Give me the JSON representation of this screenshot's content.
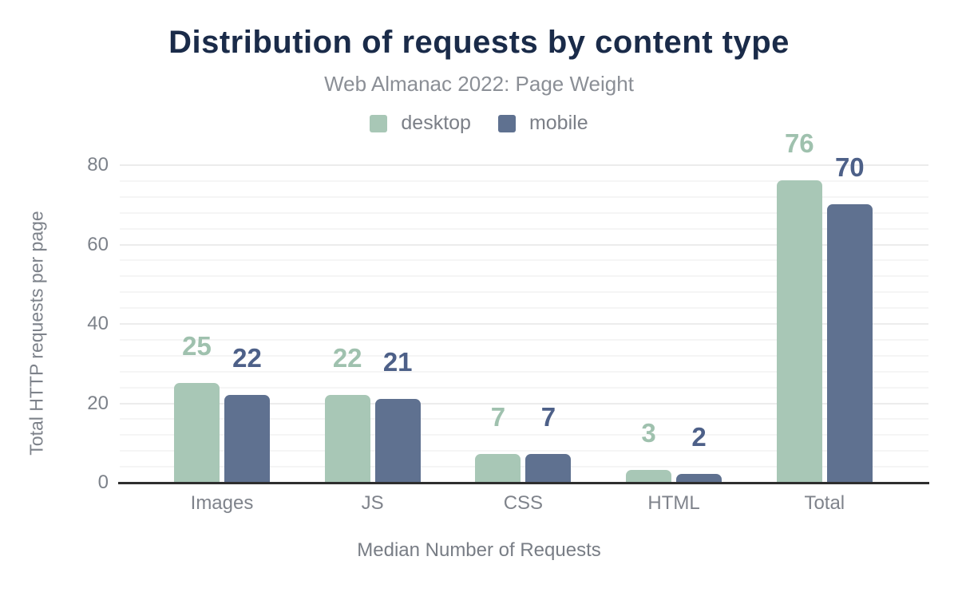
{
  "chart_data": {
    "type": "bar",
    "title": "Distribution of requests by content type",
    "subtitle": "Web Almanac 2022: Page Weight",
    "categories": [
      "Images",
      "JS",
      "CSS",
      "HTML",
      "Total"
    ],
    "series": [
      {
        "name": "desktop",
        "values": [
          25,
          22,
          7,
          3,
          76
        ],
        "color": "#a8c7b6",
        "label_color": "#9fc1ae"
      },
      {
        "name": "mobile",
        "values": [
          22,
          21,
          7,
          2,
          70
        ],
        "color": "#5f7190",
        "label_color": "#4d6088"
      }
    ],
    "xlabel": "Median Number of Requests",
    "ylabel": "Total HTTP requests per page",
    "ylim": [
      0,
      80
    ],
    "yticks": [
      0,
      20,
      40,
      60,
      80
    ],
    "grid": "horizontal minor gridlines every 4 units, major every 20",
    "legend_position": "top-center",
    "value_labels": "above each bar, colored per series"
  },
  "colors": {
    "title": "#1a2b49",
    "subtitle": "#8b8f96",
    "axis_text": "#7d828a",
    "baseline": "#2e2e2e",
    "gridline_minor": "#f5f5f5",
    "gridline_major": "#ececec",
    "background": "#ffffff"
  }
}
